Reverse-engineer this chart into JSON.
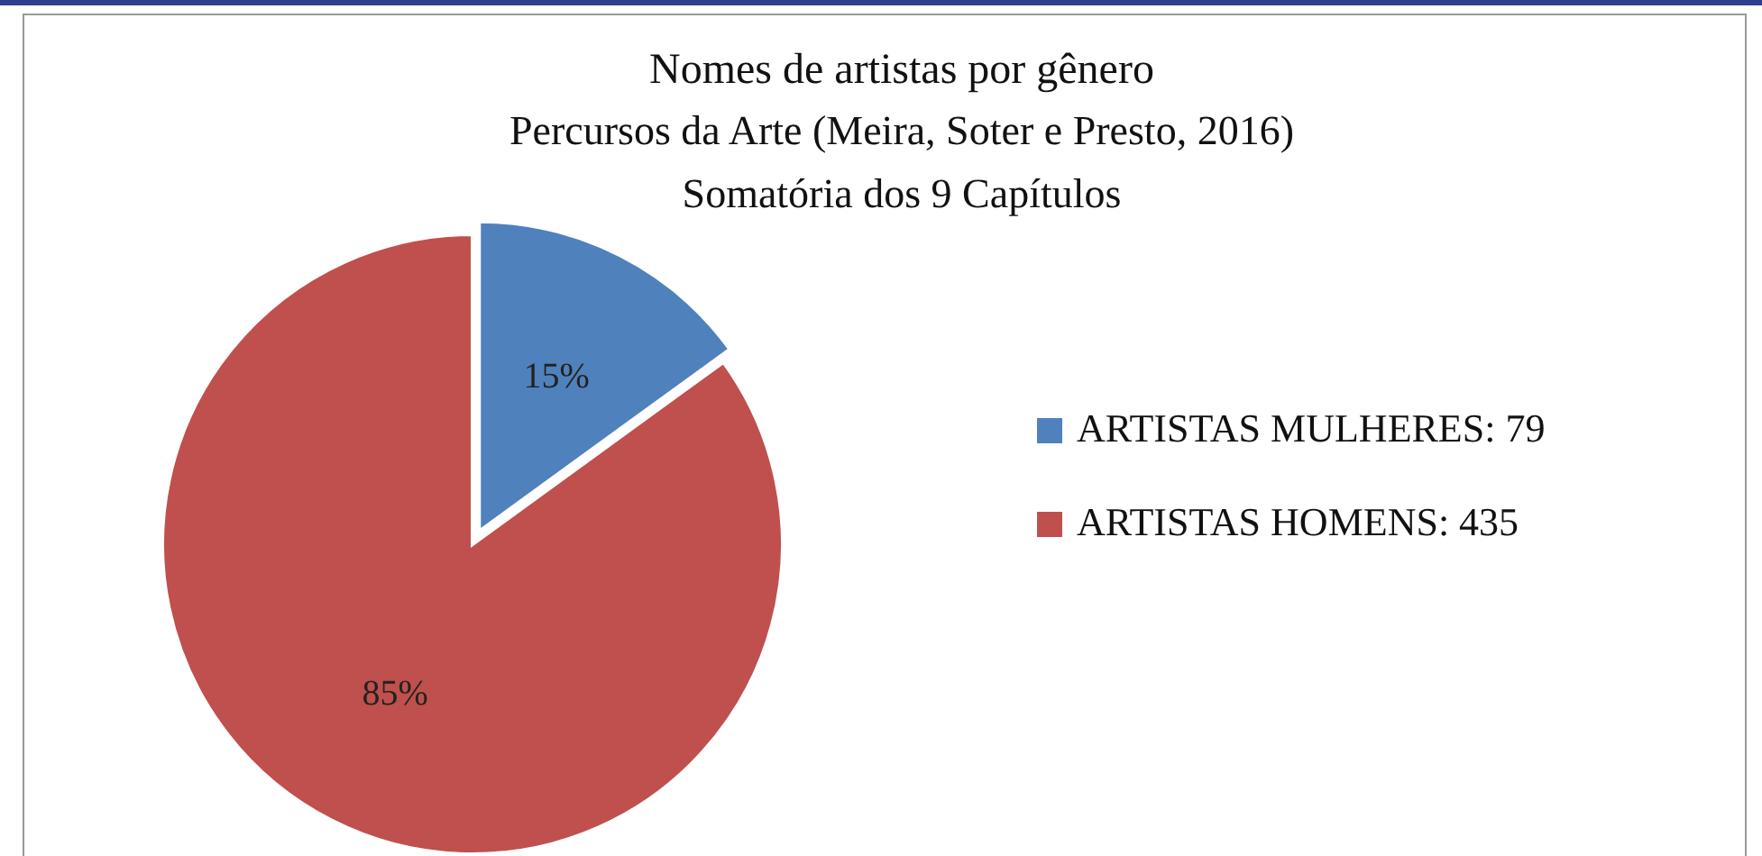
{
  "chart_data": {
    "type": "pie",
    "title": "Nomes de artistas por gênero",
    "subtitle": "Percursos da Arte (Meira, Soter e Presto, 2016)\nSomatória dos 9 Capítulos",
    "categories": [
      "ARTISTAS MULHERES: 79",
      "ARTISTAS HOMENS: 435"
    ],
    "values": [
      15,
      85
    ],
    "colors": [
      "#4f81bd",
      "#c0504d"
    ],
    "value_labels": [
      "15%",
      "85%"
    ],
    "legend": "right"
  }
}
